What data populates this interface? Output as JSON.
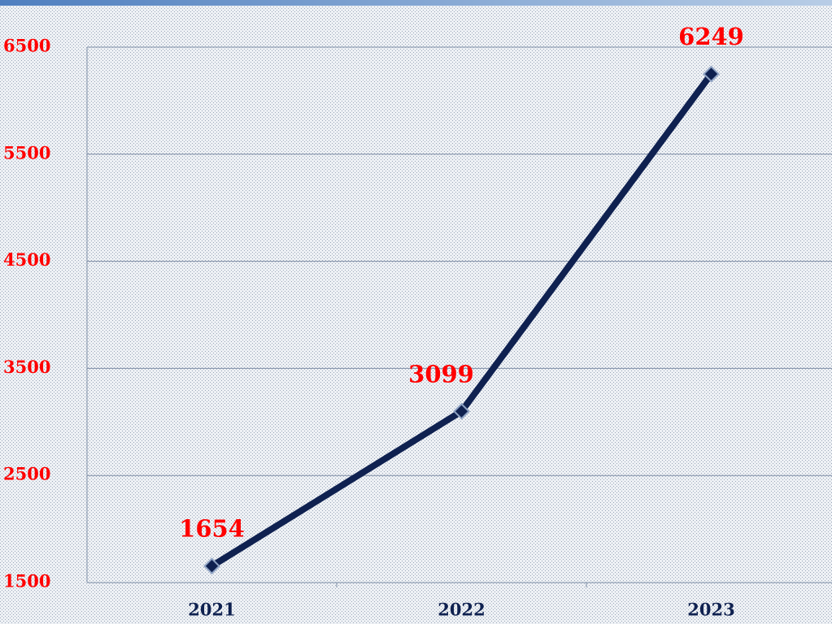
{
  "chart_data": {
    "type": "line",
    "categories": [
      "2021",
      "2022",
      "2023"
    ],
    "values": [
      1654,
      3099,
      6249
    ],
    "color": "#0f2150",
    "ylim": [
      1500,
      6500
    ],
    "yticks": [
      1500,
      2500,
      3500,
      4500,
      5500,
      6500
    ],
    "grid": true
  }
}
